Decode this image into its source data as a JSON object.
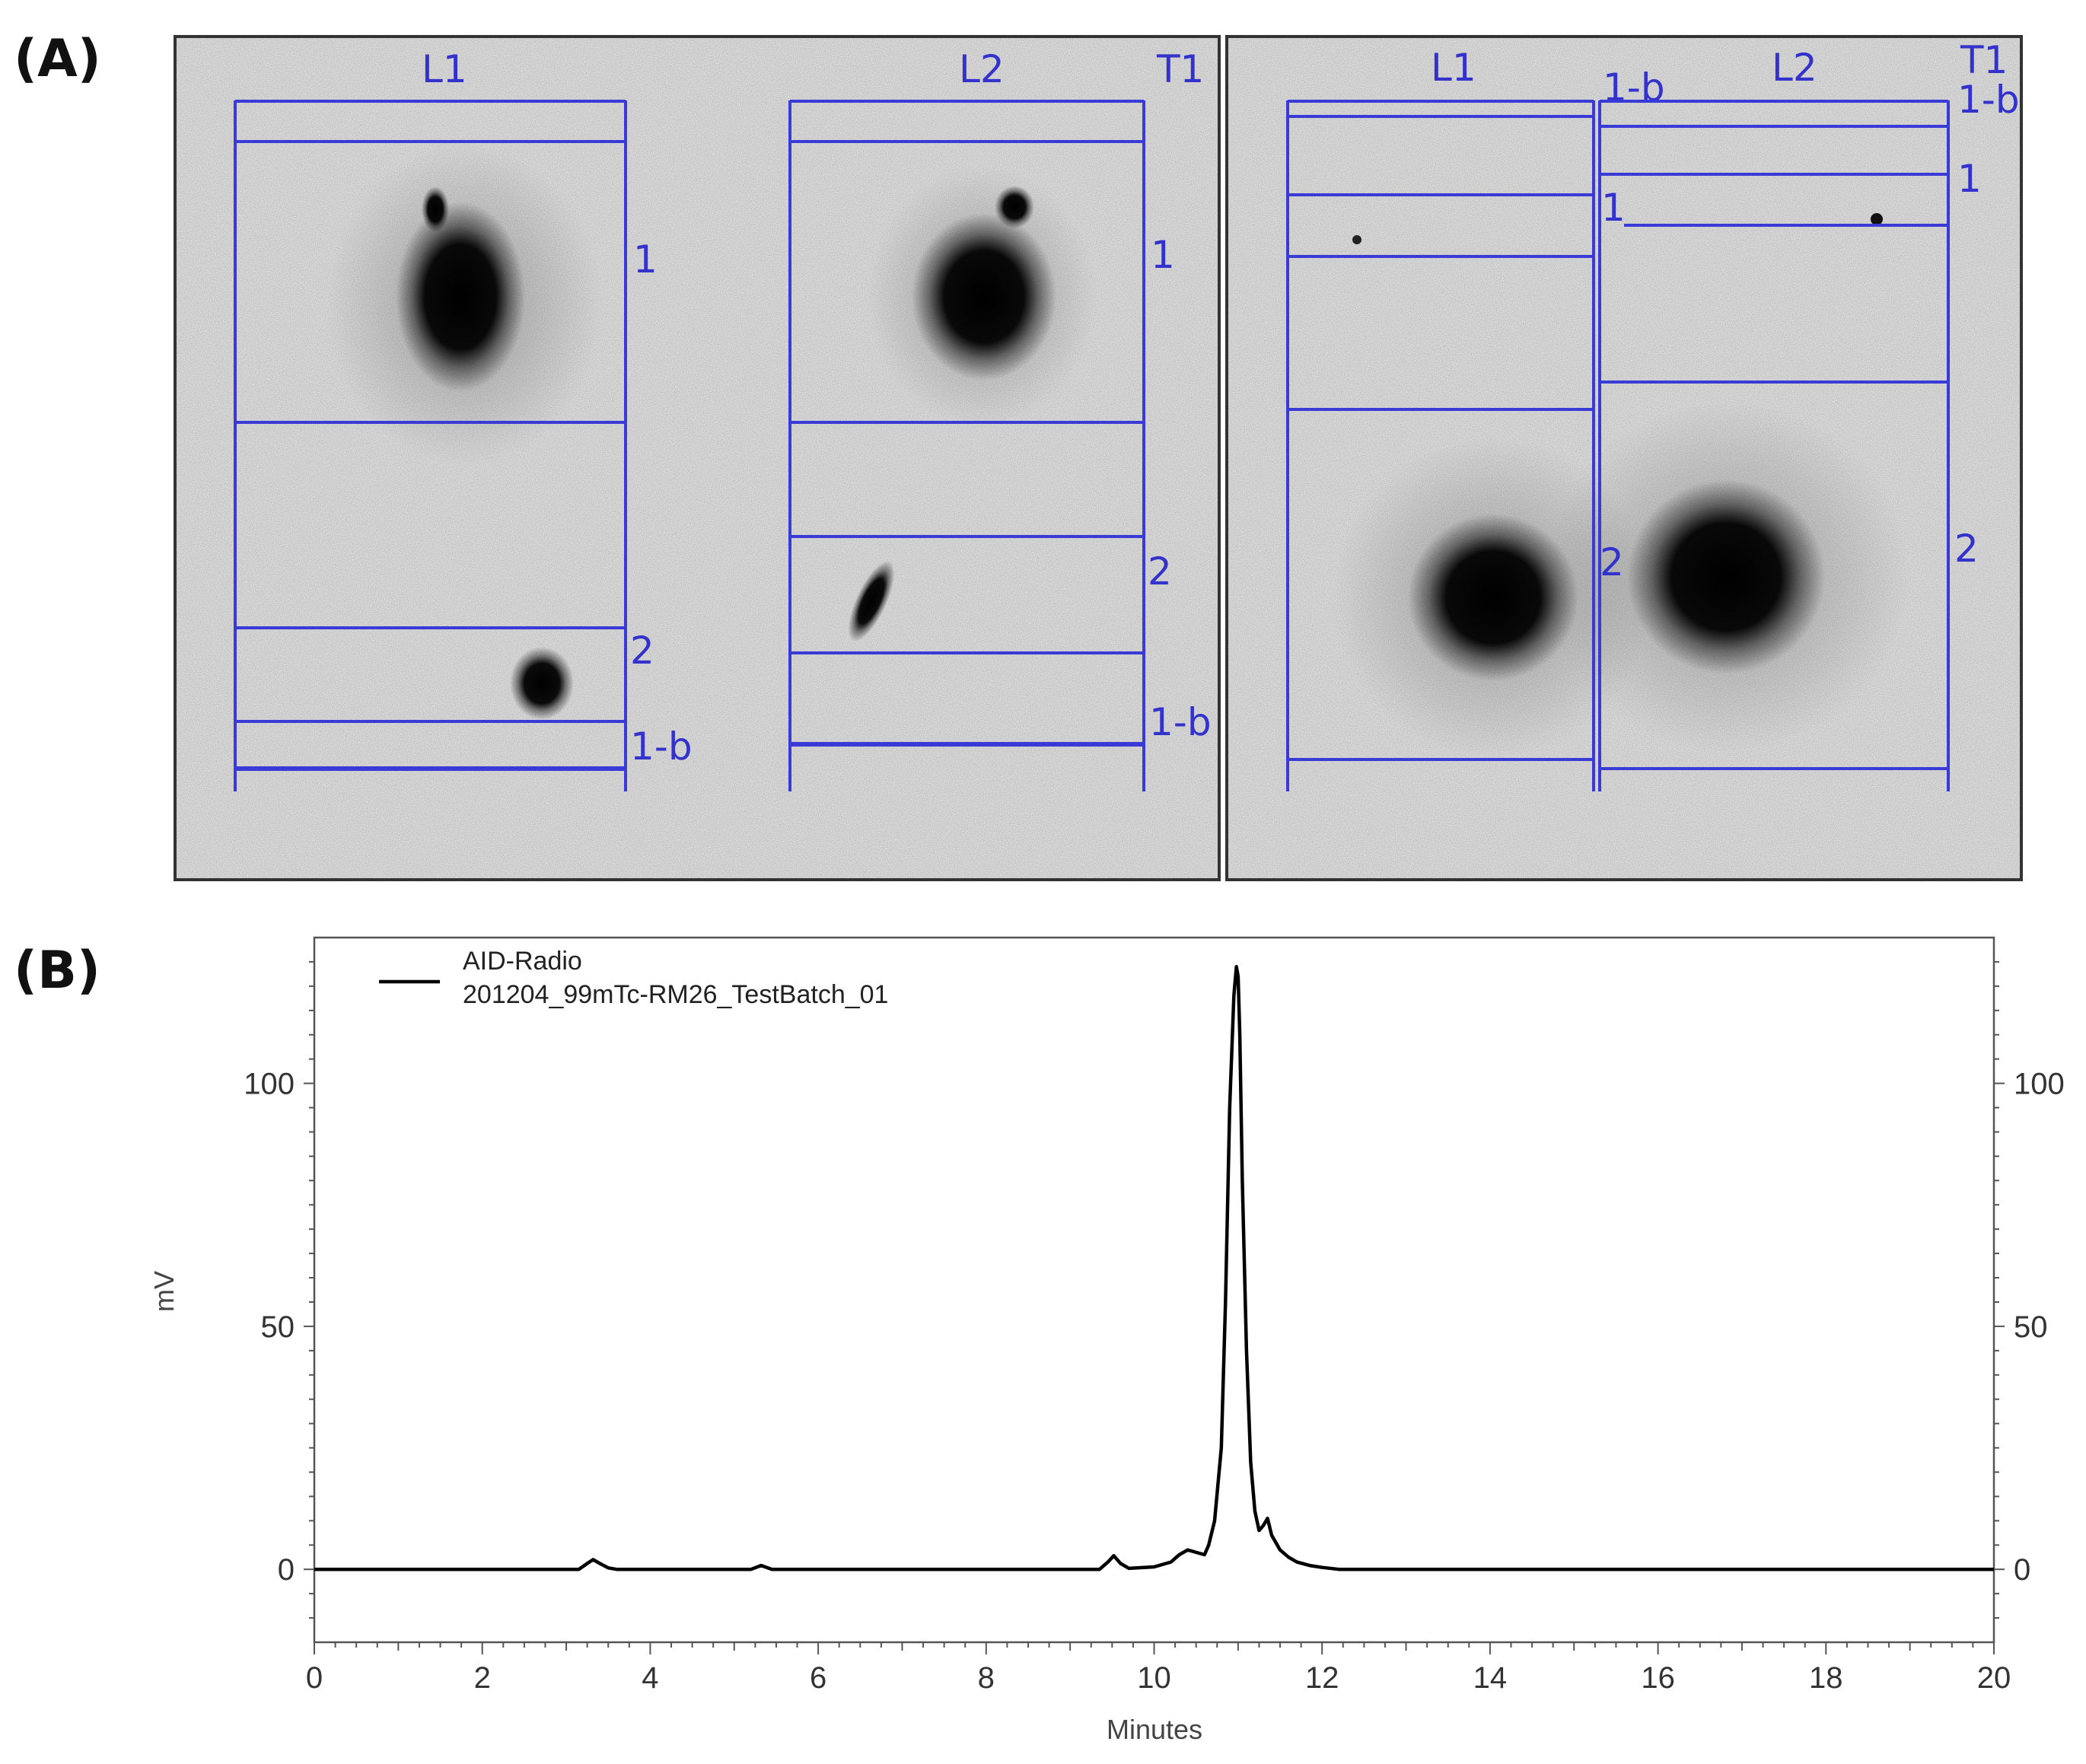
{
  "panel_labels": {
    "a": "(A)",
    "b": "(B)"
  },
  "tlc": {
    "left_plate": {
      "lane_labels": [
        "L1",
        "L2",
        "T1"
      ],
      "zone_labels_l1": [
        "1",
        "2",
        "1-b"
      ],
      "zone_labels_l2": [
        "1",
        "2",
        "1-b"
      ]
    },
    "right_plate": {
      "lane_labels": [
        "L1",
        "L2",
        "T1"
      ],
      "zone_labels_l1": [
        "1-b",
        "1",
        "2"
      ],
      "zone_labels_l2": [
        "1-b",
        "1",
        "2"
      ]
    },
    "colors": {
      "annotation": "#3a3ad6",
      "background": "#f2f2f2",
      "spot": "#000000"
    }
  },
  "chart_data": {
    "type": "line",
    "legend": {
      "line1": "AID-Radio",
      "line2": "201204_99mTc-RM26_TestBatch_01"
    },
    "xlabel": "Minutes",
    "ylabel": "mV",
    "xlim": [
      0,
      20
    ],
    "ylim": [
      -15,
      130
    ],
    "x_ticks": [
      "0",
      "2",
      "4",
      "6",
      "8",
      "10",
      "12",
      "14",
      "16",
      "18",
      "20"
    ],
    "y_ticks": [
      "0",
      "50",
      "100"
    ],
    "series": [
      {
        "x": [
          0,
          3.15,
          3.25,
          3.32,
          3.4,
          3.5,
          3.6,
          5.2,
          5.32,
          5.45,
          9.35,
          9.45,
          9.52,
          9.6,
          9.7,
          10.0,
          10.2,
          10.3,
          10.4,
          10.5,
          10.6,
          10.65,
          10.72,
          10.8,
          10.85,
          10.9,
          10.95,
          10.98,
          11.0,
          11.02,
          11.05,
          11.1,
          11.15,
          11.2,
          11.25,
          11.3,
          11.35,
          11.4,
          11.5,
          11.6,
          11.7,
          11.85,
          12.0,
          12.2,
          14,
          20
        ],
        "y": [
          0,
          0,
          1.2,
          2.0,
          1.2,
          0.3,
          0,
          0,
          0.8,
          0,
          0,
          1.5,
          2.8,
          1.2,
          0.2,
          0.5,
          1.5,
          3.0,
          4.0,
          3.5,
          3.0,
          5.0,
          10.0,
          25.0,
          55.0,
          95.0,
          118.0,
          124.0,
          122.0,
          110.0,
          80.0,
          45.0,
          22.0,
          12.0,
          8.0,
          9.0,
          10.5,
          7.0,
          4.0,
          2.5,
          1.5,
          0.8,
          0.4,
          0,
          0,
          0
        ]
      }
    ],
    "colors": {
      "line": "#000000",
      "frame": "#555555"
    }
  }
}
